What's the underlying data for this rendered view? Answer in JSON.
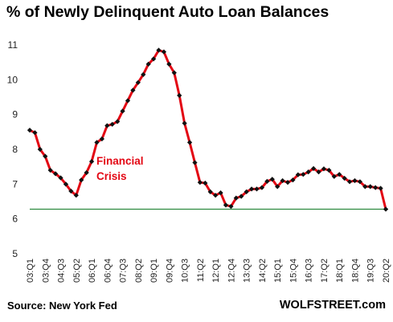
{
  "chart_data": {
    "type": "line",
    "title": "% of Newly Delinquent Auto Loan Balances",
    "ylim": [
      5,
      11
    ],
    "yticks": [
      5,
      6,
      7,
      8,
      9,
      10,
      11
    ],
    "grid": false,
    "x_ticks": [
      "03:Q1",
      "03:Q4",
      "04:Q3",
      "05:Q2",
      "06:Q1",
      "06:Q4",
      "07:Q3",
      "08:Q2",
      "09:Q1",
      "09:Q4",
      "10:Q3",
      "11:Q2",
      "12:Q1",
      "12:Q4",
      "13:Q3",
      "14:Q2",
      "15:Q1",
      "15:Q4",
      "16:Q3",
      "17:Q2",
      "18:Q1",
      "18:Q4",
      "19:Q3",
      "20:Q2"
    ],
    "x": [
      "03:Q1",
      "03:Q2",
      "03:Q3",
      "03:Q4",
      "04:Q1",
      "04:Q2",
      "04:Q3",
      "04:Q4",
      "05:Q1",
      "05:Q2",
      "05:Q3",
      "05:Q4",
      "06:Q1",
      "06:Q2",
      "06:Q3",
      "06:Q4",
      "07:Q1",
      "07:Q2",
      "07:Q3",
      "07:Q4",
      "08:Q1",
      "08:Q2",
      "08:Q3",
      "08:Q4",
      "09:Q1",
      "09:Q2",
      "09:Q3",
      "09:Q4",
      "10:Q1",
      "10:Q2",
      "10:Q3",
      "10:Q4",
      "11:Q1",
      "11:Q2",
      "11:Q3",
      "11:Q4",
      "12:Q1",
      "12:Q2",
      "12:Q3",
      "12:Q4",
      "13:Q1",
      "13:Q2",
      "13:Q3",
      "13:Q4",
      "14:Q1",
      "14:Q2",
      "14:Q3",
      "14:Q4",
      "15:Q1",
      "15:Q2",
      "15:Q3",
      "15:Q4",
      "16:Q1",
      "16:Q2",
      "16:Q3",
      "16:Q4",
      "17:Q1",
      "17:Q2",
      "17:Q3",
      "17:Q4",
      "18:Q1",
      "18:Q2",
      "18:Q3",
      "18:Q4",
      "19:Q1",
      "19:Q2",
      "19:Q3",
      "19:Q4",
      "20:Q1",
      "20:Q2"
    ],
    "series": [
      {
        "values": [
          8.55,
          8.48,
          8.0,
          7.8,
          7.4,
          7.3,
          7.18,
          7.0,
          6.8,
          6.68,
          7.12,
          7.33,
          7.65,
          8.2,
          8.3,
          8.68,
          8.72,
          8.8,
          9.1,
          9.4,
          9.7,
          9.92,
          10.15,
          10.45,
          10.6,
          10.85,
          10.8,
          10.45,
          10.2,
          9.55,
          8.75,
          8.2,
          7.62,
          7.05,
          7.03,
          6.78,
          6.68,
          6.75,
          6.4,
          6.36,
          6.6,
          6.65,
          6.78,
          6.86,
          6.86,
          6.9,
          7.08,
          7.14,
          6.93,
          7.1,
          7.05,
          7.12,
          7.27,
          7.28,
          7.35,
          7.45,
          7.35,
          7.44,
          7.4,
          7.22,
          7.28,
          7.17,
          7.07,
          7.1,
          7.07,
          6.93,
          6.93,
          6.9,
          6.88,
          6.28
        ],
        "color": "#e30613"
      }
    ],
    "reference_line": {
      "y": 6.28,
      "color": "#2e8b40"
    },
    "annotations": [
      {
        "text": "Financial",
        "color": "#e30613"
      },
      {
        "text": "Crisis",
        "color": "#e30613"
      }
    ]
  },
  "footer": {
    "source": "Source: New York Fed",
    "brand": "WOLFSTREET.com"
  }
}
